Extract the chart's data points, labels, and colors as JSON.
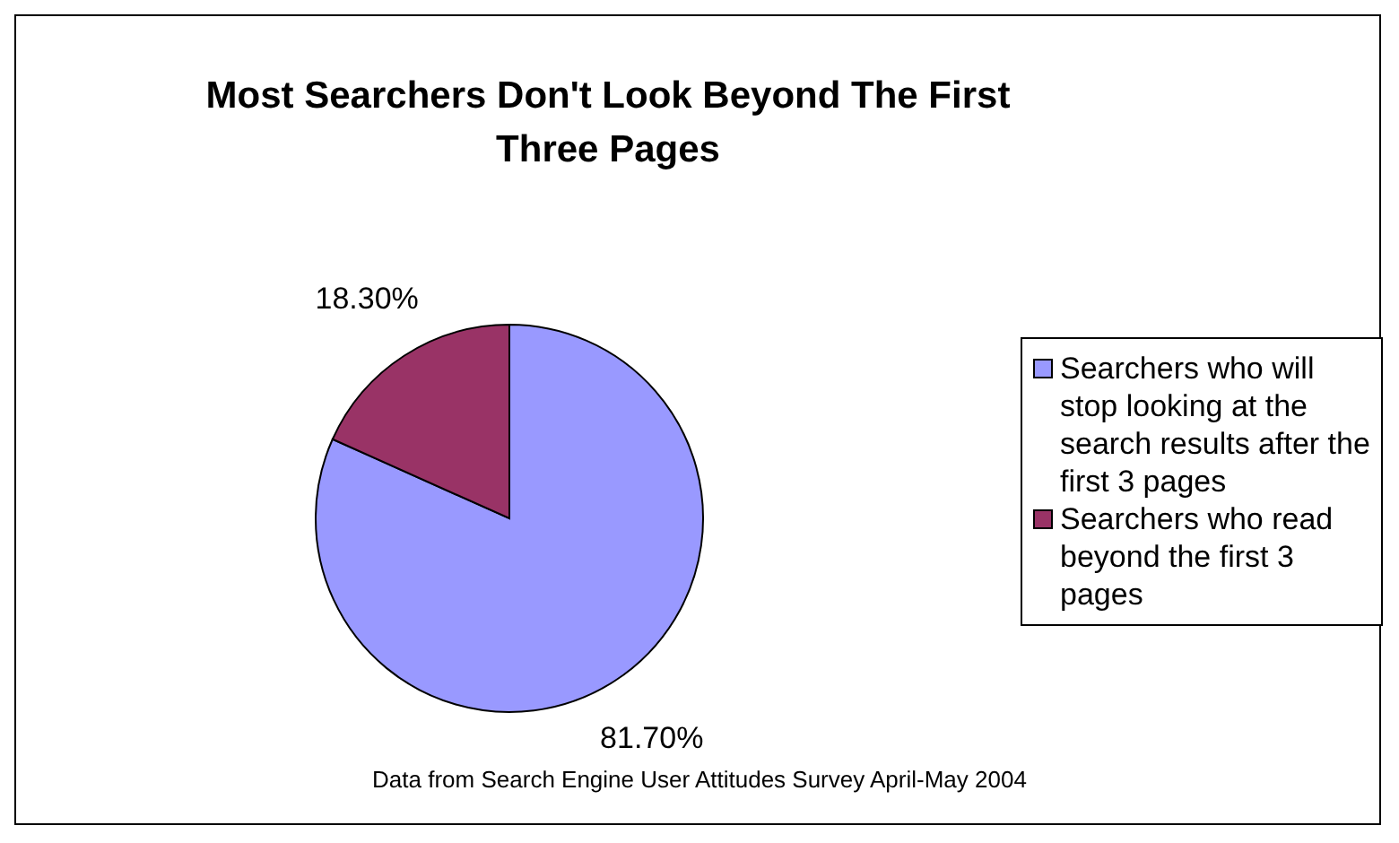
{
  "chart_data": {
    "type": "pie",
    "title": "Most Searchers Don't Look Beyond The First Three Pages",
    "categories": [
      "Searchers who will stop looking at the search results after the first 3 pages",
      "Searchers who read beyond the first 3 pages"
    ],
    "values": [
      81.7,
      18.3
    ],
    "colors": [
      "#9999ff",
      "#993366"
    ],
    "value_labels": [
      "81.70%",
      "18.30%"
    ],
    "legend": "right",
    "annotations": [
      "Data from Search Engine User Attitudes Survey April-May 2004"
    ]
  }
}
